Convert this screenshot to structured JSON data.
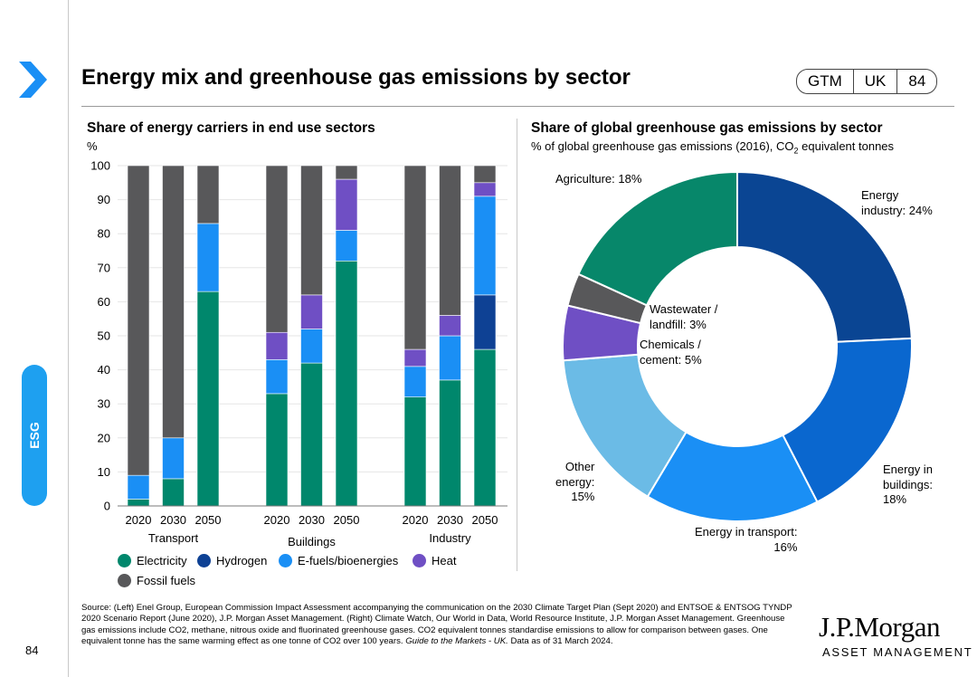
{
  "header": {
    "title": "Energy mix and greenhouse gas emissions by sector",
    "badge": [
      "GTM",
      "UK",
      "84"
    ]
  },
  "side_tab": {
    "label": "ESG"
  },
  "page_number": "84",
  "left_panel": {
    "subtitle": "Share of energy carriers in end use sectors",
    "unit": "%"
  },
  "right_panel": {
    "subtitle": "Share of global greenhouse gas emissions by sector",
    "unit_text": "% of global greenhouse gas emissions (2016), CO",
    "unit_sub": "2",
    "unit_tail": " equivalent tonnes"
  },
  "source": {
    "text": "Source: (Left) Enel Group, European Commission Impact Assessment accompanying the communication on the 2030 Climate Target Plan (Sept 2020) and ENTSOE & ENTSOG TYNDP 2020 Scenario Report (June 2020), J.P. Morgan Asset Management. (Right) Climate Watch, Our World in Data, World Resource Institute, J.P. Morgan Asset Management. Greenhouse gas emissions include CO2, methane, nitrous oxide and fluorinated greenhouse gases. CO2 equivalent tonnes standardise emissions to allow for comparison between gases. One equivalent tonne has the same warming effect as one tonne of CO2 over 100 years.",
    "guide": "Guide to the Markets - UK.",
    "date": " Data as of 31 March 2024."
  },
  "logo": {
    "main": "J.P.Morgan",
    "sub": "ASSET MANAGEMENT"
  },
  "chart_data": [
    {
      "type": "bar",
      "stacked": true,
      "ylim": [
        0,
        100
      ],
      "yticks": [
        0,
        10,
        20,
        30,
        40,
        50,
        60,
        70,
        80,
        90,
        100
      ],
      "groups": [
        "Transport",
        "Buildings",
        "Industry"
      ],
      "categories": [
        "2020",
        "2030",
        "2050"
      ],
      "series": [
        {
          "name": "Electricity",
          "color": "#00876c",
          "values": [
            [
              2,
              8,
              63
            ],
            [
              33,
              42,
              72
            ],
            [
              32,
              37,
              46
            ]
          ]
        },
        {
          "name": "Hydrogen",
          "color": "#0e4194",
          "values": [
            [
              0,
              0,
              0
            ],
            [
              0,
              0,
              0
            ],
            [
              0,
              0,
              16
            ]
          ]
        },
        {
          "name": "E-fuels/bioenergies",
          "color": "#1a8ff5",
          "values": [
            [
              7,
              12,
              20
            ],
            [
              10,
              10,
              9
            ],
            [
              9,
              13,
              29
            ]
          ]
        },
        {
          "name": "Heat",
          "color": "#6f4fc4",
          "values": [
            [
              0,
              0,
              0
            ],
            [
              8,
              10,
              15
            ],
            [
              5,
              6,
              4
            ]
          ]
        },
        {
          "name": "Fossil fuels",
          "color": "#58585a",
          "values": [
            [
              91,
              80,
              17
            ],
            [
              49,
              38,
              4
            ],
            [
              54,
              44,
              5
            ]
          ]
        }
      ]
    },
    {
      "type": "pie",
      "donut": true,
      "slices": [
        {
          "label": "Energy industry",
          "value": 24,
          "color": "#0a4593"
        },
        {
          "label": "Energy in buildings",
          "value": 18,
          "color": "#0a67cf"
        },
        {
          "label": "Energy in transport",
          "value": 16,
          "color": "#1a8ff5"
        },
        {
          "label": "Other energy",
          "value": 15,
          "color": "#6bbbe6"
        },
        {
          "label": "Chemicals / cement",
          "value": 5,
          "color": "#6f4fc4"
        },
        {
          "label": "Wastewater / landfill",
          "value": 3,
          "color": "#58585a"
        },
        {
          "label": "Agriculture",
          "value": 18,
          "color": "#07876a"
        }
      ],
      "labels": {
        "energy_industry": [
          "Energy",
          "industry: 24%"
        ],
        "energy_buildings": [
          "Energy in",
          "buildings:",
          "18%"
        ],
        "energy_transport": [
          "Energy in transport:",
          "16%"
        ],
        "other_energy": [
          "Other",
          "energy:",
          "15%"
        ],
        "chemicals": [
          "Chemicals /",
          "cement: 5%"
        ],
        "wastewater": [
          "Wastewater /",
          "landfill: 3%"
        ],
        "agriculture": [
          "Agriculture: 18%"
        ]
      }
    }
  ]
}
